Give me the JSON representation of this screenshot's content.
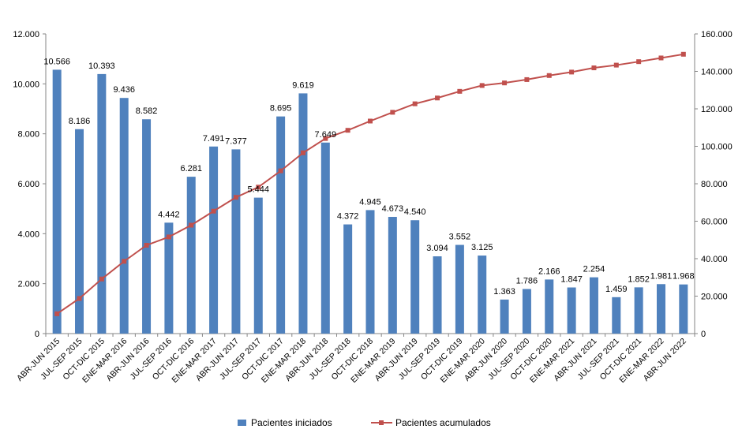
{
  "chart_data": {
    "type": "bar+line",
    "categories": [
      "ABR-JUN 2015",
      "JUL-SEP 2015",
      "OCT-DIC 2015",
      "ENE-MAR 2016",
      "ABR-JUN 2016",
      "JUL-SEP 2016",
      "OCT-DIC 2016",
      "ENE-MAR 2017",
      "ABR-JUN 2017",
      "JUL-SEP 2017",
      "OCT-DIC 2017",
      "ENE-MAR 2018",
      "ABR-JUN 2018",
      "JUL-SEP 2018",
      "OCT-DIC 2018",
      "ENE-MAR 2019",
      "ABR-JUN 2019",
      "JUL-SEP 2019",
      "OCT-DIC 2019",
      "ENE-MAR 2020",
      "ABR-JUN 2020",
      "JUL-SEP 2020",
      "OCT-DIC 2020",
      "ENE-MAR 2021",
      "ABR-JUN 2021",
      "JUL-SEP 2021",
      "OCT-DIC 2021",
      "ENE-MAR 2022",
      "ABR-JUN 2022"
    ],
    "series": [
      {
        "name": "Pacientes iniciados",
        "kind": "bar",
        "axis": "left",
        "color": "#4F81BD",
        "values": [
          10566,
          8186,
          10393,
          9436,
          8582,
          4442,
          6281,
          7491,
          7377,
          5444,
          8695,
          9619,
          7649,
          4372,
          4945,
          4673,
          4540,
          3094,
          3552,
          3125,
          1363,
          1786,
          2166,
          1847,
          2254,
          1459,
          1852,
          1981,
          1968
        ],
        "labels": [
          "10.566",
          "8.186",
          "10.393",
          "9.436",
          "8.582",
          "4.442",
          "6.281",
          "7.491",
          "7.377",
          "5.444",
          "8.695",
          "9.619",
          "7.649",
          "4.372",
          "4.945",
          "4.673",
          "4.540",
          "3.094",
          "3.552",
          "3.125",
          "1.363",
          "1.786",
          "2.166",
          "1.847",
          "2.254",
          "1.459",
          "1.852",
          "1.981",
          "1.968"
        ]
      },
      {
        "name": "Pacientes acumulados",
        "kind": "line",
        "axis": "right",
        "color": "#C0504D",
        "values": [
          10566,
          18752,
          29145,
          38581,
          47163,
          51605,
          57886,
          65377,
          72754,
          78198,
          86893,
          96512,
          104161,
          108533,
          113478,
          118151,
          122691,
          125785,
          129337,
          132462,
          133825,
          135611,
          137777,
          139624,
          141878,
          143337,
          145189,
          147170,
          149138
        ]
      }
    ],
    "y_left": {
      "range": [
        0,
        12000
      ],
      "ticks": [
        0,
        2000,
        4000,
        6000,
        8000,
        10000,
        12000
      ],
      "tick_labels": [
        "0",
        "2.000",
        "4.000",
        "6.000",
        "8.000",
        "10.000",
        "12.000"
      ]
    },
    "y_right": {
      "range": [
        0,
        160000
      ],
      "ticks": [
        0,
        20000,
        40000,
        60000,
        80000,
        100000,
        120000,
        140000,
        160000
      ],
      "tick_labels": [
        "0",
        "20.000",
        "40.000",
        "60.000",
        "80.000",
        "100.000",
        "120.000",
        "140.000",
        "160.000"
      ]
    },
    "title": "",
    "xlabel": "",
    "grid": false,
    "legend": {
      "placement": "bottom",
      "items": [
        {
          "label": "Pacientes iniciados",
          "marker": "bar",
          "color": "#4F81BD"
        },
        {
          "label": "Pacientes acumulados",
          "marker": "line-square",
          "color": "#C0504D"
        }
      ]
    }
  }
}
